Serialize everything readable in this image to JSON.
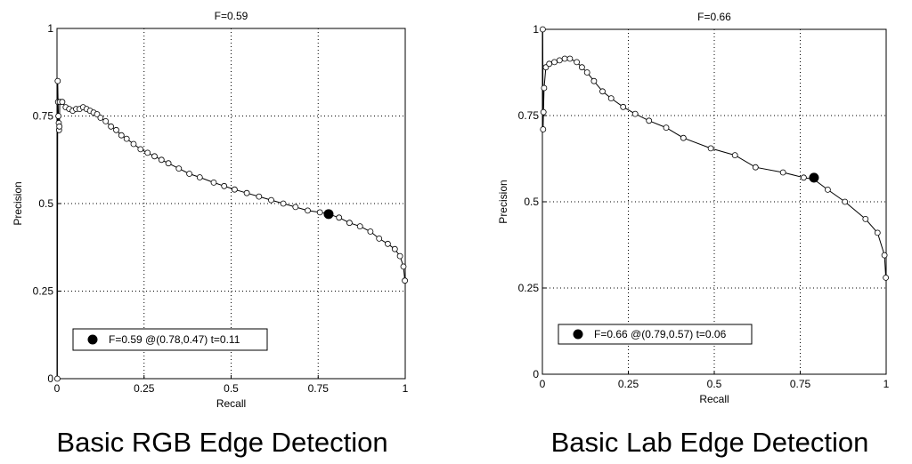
{
  "chart_data": [
    {
      "type": "line",
      "title": "F=0.59",
      "xlabel": "Recall",
      "ylabel": "Precision",
      "caption": "Basic RGB Edge Detection",
      "xlim": [
        0,
        1
      ],
      "ylim": [
        0,
        1
      ],
      "xticks": [
        "0",
        "0.25",
        "0.5",
        "0.75",
        "1"
      ],
      "yticks": [
        "0",
        "0.25",
        "0.5",
        "0.75",
        "1"
      ],
      "grid": true,
      "legend": "F=0.59 @(0.78,0.47) t=0.11",
      "legend_position": "bottom-left",
      "best_point": {
        "x": 0.78,
        "y": 0.47
      },
      "series": [
        {
          "x": [
            0.001,
            0.002,
            0.003,
            0.004,
            0.005,
            0.006,
            0.007,
            0.008,
            0.015,
            0.025,
            0.035,
            0.045,
            0.055,
            0.065,
            0.075,
            0.085,
            0.095,
            0.105,
            0.115,
            0.125,
            0.14,
            0.155,
            0.17,
            0.185,
            0.2,
            0.22,
            0.24,
            0.26,
            0.28,
            0.3,
            0.32,
            0.35,
            0.38,
            0.41,
            0.45,
            0.48,
            0.51,
            0.545,
            0.58,
            0.615,
            0.65,
            0.685,
            0.72,
            0.755,
            0.78,
            0.81,
            0.84,
            0.87,
            0.9,
            0.925,
            0.95,
            0.97,
            0.985,
            0.995,
            0.999
          ],
          "y": [
            0.0,
            0.85,
            0.79,
            0.75,
            0.73,
            0.71,
            0.72,
            0.79,
            0.79,
            0.775,
            0.77,
            0.765,
            0.77,
            0.77,
            0.775,
            0.77,
            0.765,
            0.76,
            0.755,
            0.745,
            0.735,
            0.72,
            0.71,
            0.695,
            0.685,
            0.67,
            0.655,
            0.645,
            0.635,
            0.625,
            0.615,
            0.6,
            0.585,
            0.575,
            0.56,
            0.55,
            0.54,
            0.53,
            0.52,
            0.51,
            0.5,
            0.49,
            0.48,
            0.475,
            0.47,
            0.46,
            0.445,
            0.435,
            0.42,
            0.4,
            0.385,
            0.37,
            0.35,
            0.32,
            0.28
          ]
        }
      ]
    },
    {
      "type": "line",
      "title": "F=0.66",
      "xlabel": "Recall",
      "ylabel": "Precision",
      "caption": "Basic Lab Edge Detection",
      "xlim": [
        0,
        1
      ],
      "ylim": [
        0,
        1
      ],
      "xticks": [
        "0",
        "0.25",
        "0.5",
        "0.75",
        "1"
      ],
      "yticks": [
        "0",
        "0.25",
        "0.5",
        "0.75",
        "1"
      ],
      "grid": true,
      "legend": "F=0.66 @(0.79,0.57) t=0.06",
      "legend_position": "bottom-left",
      "best_point": {
        "x": 0.79,
        "y": 0.57
      },
      "series": [
        {
          "x": [
            0.001,
            0.002,
            0.003,
            0.005,
            0.01,
            0.02,
            0.035,
            0.05,
            0.065,
            0.08,
            0.1,
            0.115,
            0.13,
            0.15,
            0.175,
            0.2,
            0.235,
            0.27,
            0.31,
            0.36,
            0.41,
            0.49,
            0.56,
            0.62,
            0.7,
            0.76,
            0.79,
            0.83,
            0.88,
            0.94,
            0.975,
            0.995,
            0.999
          ],
          "y": [
            1.0,
            0.71,
            0.76,
            0.83,
            0.89,
            0.9,
            0.905,
            0.91,
            0.915,
            0.915,
            0.905,
            0.89,
            0.875,
            0.85,
            0.82,
            0.8,
            0.775,
            0.755,
            0.735,
            0.715,
            0.685,
            0.655,
            0.635,
            0.6,
            0.585,
            0.57,
            0.565,
            0.535,
            0.5,
            0.45,
            0.41,
            0.345,
            0.28
          ]
        }
      ]
    }
  ]
}
